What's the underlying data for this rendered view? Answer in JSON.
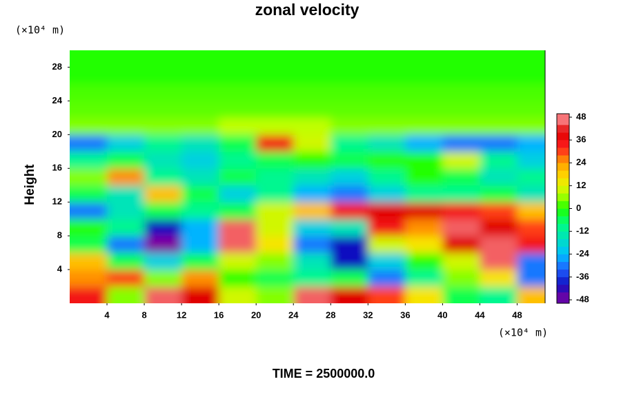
{
  "chart_data": {
    "type": "heatmap",
    "title": "zonal velocity",
    "x_unit": "(×10⁴ m)",
    "y_unit": "(×10⁴ m)",
    "ylabel": "Height",
    "footer": "TIME = 2500000.0",
    "x": [
      2,
      6,
      10,
      14,
      18,
      22,
      26,
      30,
      34,
      38,
      42,
      46,
      50
    ],
    "y": [
      1,
      3,
      5,
      7,
      9,
      11,
      13,
      15,
      17,
      19,
      21,
      23,
      25,
      27,
      29
    ],
    "z": [
      [
        35,
        5,
        45,
        40,
        10,
        5,
        45,
        40,
        30,
        15,
        -5,
        -10,
        20
      ],
      [
        25,
        30,
        5,
        25,
        0,
        -5,
        -10,
        -5,
        -30,
        -10,
        5,
        15,
        -30
      ],
      [
        20,
        -5,
        -20,
        -5,
        10,
        5,
        -15,
        -40,
        -20,
        0,
        10,
        45,
        -30
      ],
      [
        -5,
        -30,
        -48,
        -25,
        45,
        15,
        -30,
        -40,
        10,
        15,
        40,
        45,
        35
      ],
      [
        0,
        -10,
        -40,
        -25,
        45,
        10,
        -20,
        -15,
        35,
        25,
        45,
        40,
        30
      ],
      [
        -30,
        -15,
        -5,
        -10,
        -5,
        10,
        20,
        35,
        40,
        40,
        35,
        30,
        20
      ],
      [
        -5,
        -15,
        20,
        -5,
        -20,
        -10,
        -25,
        -30,
        -20,
        -10,
        -10,
        -5,
        -15
      ],
      [
        5,
        25,
        -10,
        -15,
        -5,
        -10,
        -15,
        -20,
        -10,
        0,
        -5,
        -15,
        -10
      ],
      [
        -10,
        -5,
        -15,
        -20,
        -10,
        -5,
        0,
        -5,
        0,
        0,
        10,
        -10,
        -20
      ],
      [
        -30,
        -20,
        -10,
        -15,
        -5,
        35,
        10,
        -10,
        -15,
        -25,
        -30,
        -30,
        -25
      ],
      [
        5,
        5,
        5,
        5,
        8,
        8,
        8,
        5,
        5,
        5,
        5,
        5,
        5
      ],
      [
        3,
        3,
        3,
        3,
        3,
        3,
        3,
        3,
        3,
        3,
        3,
        3,
        3
      ],
      [
        2,
        2,
        2,
        2,
        2,
        2,
        2,
        2,
        2,
        2,
        2,
        2,
        2
      ],
      [
        0,
        0,
        0,
        0,
        0,
        0,
        0,
        0,
        0,
        0,
        0,
        0,
        0
      ],
      [
        0,
        0,
        0,
        0,
        0,
        0,
        0,
        0,
        0,
        0,
        0,
        0,
        0
      ]
    ],
    "xlim": [
      0,
      51
    ],
    "xticks": [
      4,
      8,
      12,
      16,
      20,
      24,
      28,
      32,
      36,
      40,
      44,
      48
    ],
    "ylim": [
      0,
      30
    ],
    "yticks": [
      4,
      8,
      12,
      16,
      20,
      24,
      28
    ],
    "zlim": [
      -48,
      48
    ],
    "zticks": [
      -48,
      -36,
      -24,
      -12,
      0,
      12,
      24,
      36,
      48
    ],
    "colorscale": [
      "#8000a0",
      "#1010c0",
      "#2060ff",
      "#00c0ff",
      "#00e0c0",
      "#00ff80",
      "#20ff00",
      "#c0ff00",
      "#ffe000",
      "#ffa000",
      "#ff2020",
      "#e00000",
      "#ff9aa0"
    ]
  }
}
